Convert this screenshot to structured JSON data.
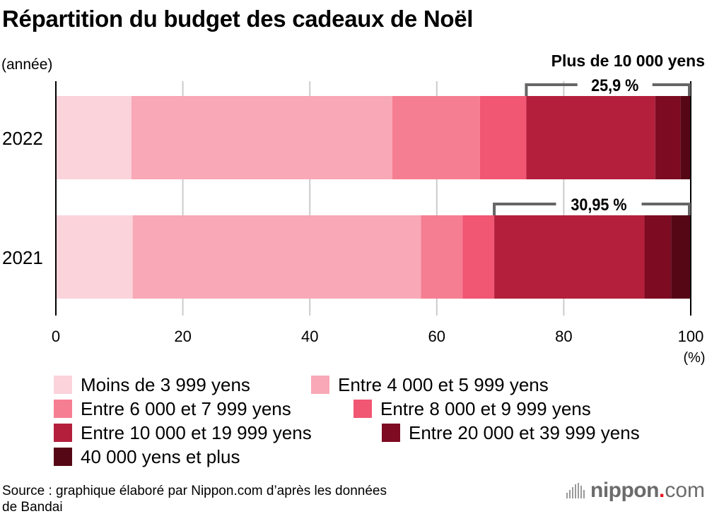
{
  "header": {
    "title": "Répartition du budget des cadeaux de Noël",
    "y_axis_unit": "(année)",
    "annotation_header": "Plus de 10 000 yens"
  },
  "chart_data": {
    "type": "bar",
    "orientation": "horizontal",
    "stacked": true,
    "title": "Répartition du budget des cadeaux de Noël",
    "xlabel": "(%)",
    "ylabel": "(année)",
    "xlim": [
      0,
      100
    ],
    "x_ticks": [
      "0",
      "20",
      "40",
      "60",
      "80",
      "100"
    ],
    "grid": true,
    "legend_position": "bottom",
    "categories": [
      "2022",
      "2021"
    ],
    "series": [
      {
        "name": "Moins de 3 999 yens",
        "color": "#fbd3db",
        "values": [
          11.9,
          12.1
        ]
      },
      {
        "name": "Entre 4 000 et 5 999 yens",
        "color": "#f8a8b6",
        "values": [
          41.1,
          45.4
        ]
      },
      {
        "name": "Entre 6 000 et 7 999 yens",
        "color": "#f67e92",
        "values": [
          13.8,
          6.55
        ]
      },
      {
        "name": "Entre 8 000 et 9 999 yens",
        "color": "#f15672",
        "values": [
          7.3,
          5.0
        ]
      },
      {
        "name": "Entre 10 000 et 19 999 yens",
        "color": "#b41f3c",
        "values": [
          20.3,
          23.65
        ]
      },
      {
        "name": "Entre 20 000 et 39 999 yens",
        "color": "#7d0b22",
        "values": [
          4.0,
          4.2
        ]
      },
      {
        "name": "40 000 yens et plus",
        "color": "#560716",
        "values": [
          1.6,
          3.1
        ]
      }
    ],
    "annotations": [
      {
        "category": "2022",
        "label": "25,9 %",
        "from_series": 4,
        "to_value": 100
      },
      {
        "category": "2021",
        "label": "30,95 %",
        "from_series": 4,
        "to_value": 100
      }
    ]
  },
  "footer": {
    "source_line1": "Source : graphique élaboré par Nippon.com d’après les données",
    "source_line2": "de Bandai",
    "logo_main": "nippon",
    "logo_dot": ".",
    "logo_com": "com"
  }
}
